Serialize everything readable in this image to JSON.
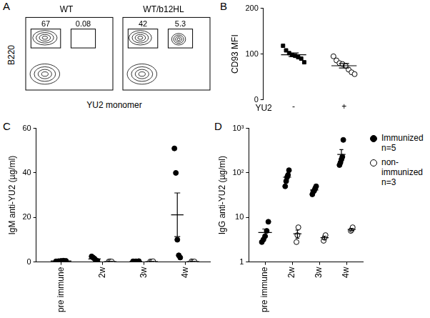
{
  "chart_data": [
    {
      "panel": "A",
      "type": "flow",
      "x_label": "YU2 monomer",
      "y_label": "B220",
      "xlim": [
        0,
        100
      ],
      "ylim": [
        0,
        100
      ],
      "tick_labels": false,
      "plots": [
        {
          "title": "WT",
          "populations": [
            {
              "x": 22,
              "y": 72,
              "rx": 14,
              "ry": 10
            },
            {
              "x": 22,
              "y": 22,
              "rx": 17,
              "ry": 14
            }
          ],
          "gates": [
            {
              "x": [
                6,
                40
              ],
              "y": [
                58,
                84
              ],
              "value": 67
            },
            {
              "x": [
                52,
                80
              ],
              "y": [
                58,
                84
              ],
              "value": 0.08
            }
          ]
        },
        {
          "title": "WT/b12HL",
          "populations": [
            {
              "x": 20,
              "y": 72,
              "rx": 13,
              "ry": 10
            },
            {
              "x": 64,
              "y": 70,
              "rx": 8,
              "ry": 8
            },
            {
              "x": 22,
              "y": 22,
              "rx": 17,
              "ry": 14
            }
          ],
          "gates": [
            {
              "x": [
                6,
                40
              ],
              "y": [
                58,
                84
              ],
              "value": 42
            },
            {
              "x": [
                52,
                80
              ],
              "y": [
                58,
                84
              ],
              "value": 5.3
            }
          ]
        }
      ]
    },
    {
      "panel": "B",
      "type": "scatter",
      "xlabel": "YU2",
      "ylabel": "CD93 MFI",
      "categories": [
        "-",
        "+"
      ],
      "ylim": [
        0,
        200
      ],
      "yticks": [
        0,
        100,
        200
      ],
      "grid": false,
      "series": [
        {
          "marker": "square",
          "color": "#000000",
          "values": [
            [
              118,
              108,
              102,
              98,
              96,
              93,
              90,
              82
            ],
            null
          ],
          "mean": [
            98.4,
            null
          ],
          "sem": [
            4,
            null
          ]
        },
        {
          "marker": "open_circle",
          "color": "#000000",
          "values": [
            null,
            [
              95,
              86,
              80,
              78,
              74,
              66,
              60,
              56
            ]
          ],
          "mean": [
            null,
            74.4
          ],
          "sem": [
            null,
            5
          ]
        }
      ]
    },
    {
      "panel": "C",
      "type": "scatter",
      "ylabel": "IgM anti-YU2 (µg/ml)",
      "categories": [
        "pre immune",
        "2w",
        "3w",
        "4w"
      ],
      "ylim": [
        0,
        60
      ],
      "yticks": [
        0,
        20,
        40,
        60
      ],
      "grid": false,
      "series": [
        {
          "name": "Immunized",
          "marker": "circle",
          "color": "#000000",
          "values": [
            [
              0.3,
              0.4,
              0.5,
              0.6,
              0.5
            ],
            [
              2.5,
              2,
              1.5,
              0.5,
              0.5
            ],
            [
              0.3,
              0.2,
              0.3,
              0.2,
              0.4
            ],
            [
              51,
              40,
              10,
              3,
              2
            ]
          ],
          "mean": [
            0.5,
            1.4,
            0.3,
            21.2
          ],
          "sem": [
            0.05,
            0.4,
            0.04,
            9.8
          ]
        },
        {
          "name": "non-immunized",
          "marker": "open_circle",
          "color": "#000000",
          "values": [
            null,
            [
              0.2,
              0.3,
              0.2
            ],
            [
              0.2,
              0.2,
              0.3
            ],
            [
              0.3,
              0.2,
              0.2
            ]
          ],
          "mean": [
            null,
            0.2,
            0.2,
            0.2
          ],
          "sem": [
            null,
            0.03,
            0.03,
            0.03
          ]
        }
      ]
    },
    {
      "panel": "D",
      "type": "scatter",
      "ylabel": "IgG anti-YU2 (µg/ml)",
      "log": "y",
      "legend": "right",
      "categories": [
        "pre immune",
        "2w",
        "3w",
        "4w"
      ],
      "ylim": [
        1,
        1000
      ],
      "yticks": [
        1,
        10,
        {
          "value": 100,
          "label": "10²"
        },
        {
          "value": 1000,
          "label": "10³"
        }
      ],
      "grid": false,
      "series": [
        {
          "name": "Immunized",
          "n_label": "n=5",
          "marker": "circle",
          "color": "#000000",
          "values": [
            [
              2.8,
              3.2,
              3.8,
              5,
              8
            ],
            [
              50,
              65,
              80,
              90,
              115
            ],
            [
              33,
              38,
              40,
              45,
              50
            ],
            [
              150,
              170,
              200,
              230,
              550
            ]
          ],
          "mean": [
            4.6,
            80,
            41.2,
            260
          ],
          "sem": [
            0.9,
            11,
            3,
            72
          ]
        },
        {
          "name": "non-immunized",
          "n_label": "n=3",
          "marker": "open_circle",
          "color": "#000000",
          "values": [
            null,
            [
              2.8,
              4,
              6
            ],
            [
              3,
              3.5,
              4
            ],
            [
              5,
              5.3,
              6
            ]
          ],
          "mean": [
            null,
            4.3,
            3.5,
            5.4
          ],
          "sem": [
            null,
            0.9,
            0.3,
            0.3
          ]
        }
      ]
    }
  ]
}
